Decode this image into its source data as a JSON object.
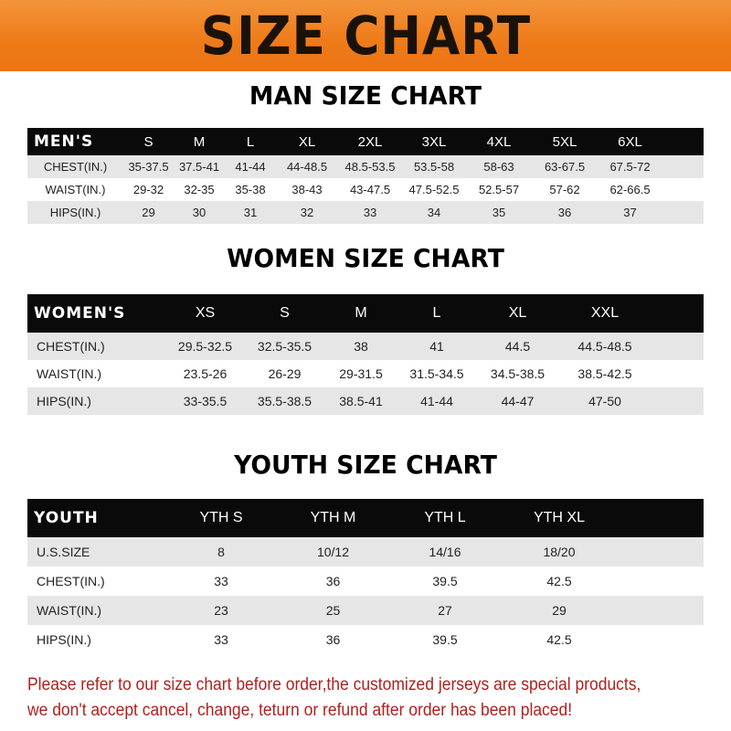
{
  "title": "SIZE CHART",
  "men": {
    "title": "MAN SIZE CHART",
    "header": [
      "MEN'S",
      "S",
      "M",
      "L",
      "XL",
      "2XL",
      "3XL",
      "4XL",
      "5XL",
      "6XL"
    ],
    "rows": [
      [
        "CHEST(IN.)",
        "35-37.5",
        "37.5-41",
        "41-44",
        "44-48.5",
        "48.5-53.5",
        "53.5-58",
        "58-63",
        "63-67.5",
        "67.5-72"
      ],
      [
        "WAIST(IN.)",
        "29-32",
        "32-35",
        "35-38",
        "38-43",
        "43-47.5",
        "47.5-52.5",
        "52.5-57",
        "57-62",
        "62-66.5"
      ],
      [
        "HIPS(IN.)",
        "29",
        "30",
        "31",
        "32",
        "33",
        "34",
        "35",
        "36",
        "37"
      ]
    ]
  },
  "women": {
    "title": "WOMEN SIZE CHART",
    "header": [
      "WOMEN'S",
      "XS",
      "S",
      "M",
      "L",
      "XL",
      "XXL"
    ],
    "rows": [
      [
        "CHEST(IN.)",
        "29.5-32.5",
        "32.5-35.5",
        "38",
        "41",
        "44.5",
        "44.5-48.5"
      ],
      [
        "WAIST(IN.)",
        "23.5-26",
        "26-29",
        "29-31.5",
        "31.5-34.5",
        "34.5-38.5",
        "38.5-42.5"
      ],
      [
        "HIPS(IN.)",
        "33-35.5",
        "35.5-38.5",
        "38.5-41",
        "41-44",
        "44-47",
        "47-50"
      ]
    ]
  },
  "youth": {
    "title": "YOUTH SIZE CHART",
    "header": [
      "YOUTH",
      "YTH S",
      "YTH M",
      "YTH L",
      "YTH XL"
    ],
    "rows": [
      [
        "U.S.SIZE",
        "8",
        "10/12",
        "14/16",
        "18/20"
      ],
      [
        "CHEST(IN.)",
        "33",
        "36",
        "39.5",
        "42.5"
      ],
      [
        "WAIST(IN.)",
        "23",
        "25",
        "27",
        "29"
      ],
      [
        "HIPS(IN.)",
        "33",
        "36",
        "39.5",
        "42.5"
      ]
    ]
  },
  "notice": [
    "Please refer to our size chart before order,the customized jerseys are special products,",
    "we don't accept cancel, change, teturn or refund after order has been placed!"
  ],
  "colors": {
    "banner": "#ee7a18",
    "header_row": "#0a0a0a",
    "stripe": "#e6e6e6",
    "notice": "#b0201e"
  }
}
